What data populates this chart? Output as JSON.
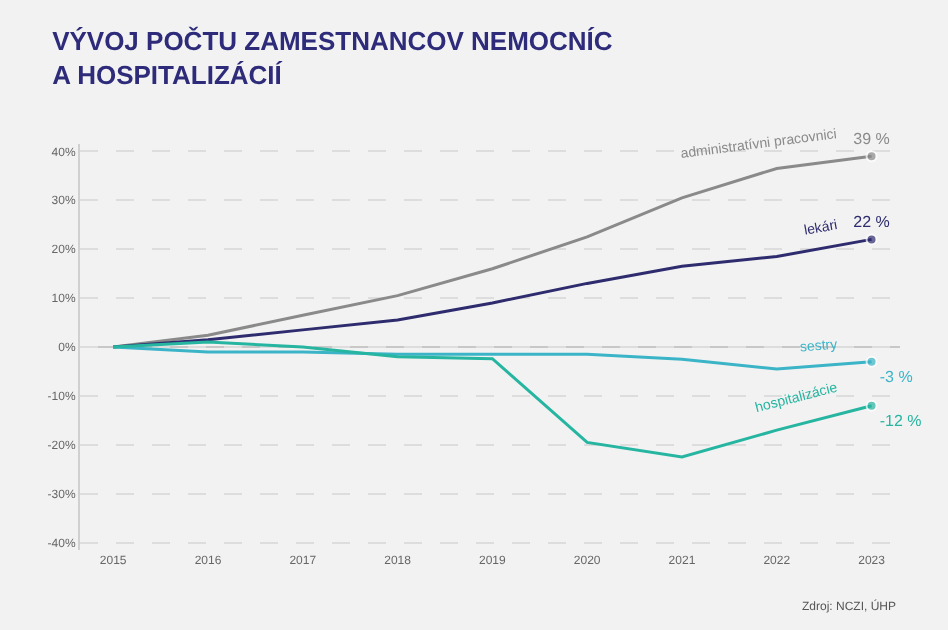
{
  "chart_data": {
    "type": "line",
    "title": "VÝVOJ POČTU ZAMESTNANCOV NEMOCNÍC A HOSPITALIZÁCIÍ",
    "x": [
      2015,
      2016,
      2017,
      2018,
      2019,
      2020,
      2021,
      2022,
      2023
    ],
    "series": [
      {
        "name": "administratívni pracovnici",
        "color": "#8a8a8a",
        "values": [
          0,
          2.4,
          6.5,
          10.5,
          16,
          22.5,
          30.5,
          36.5,
          39
        ],
        "value_labels": [
          null,
          null,
          null,
          null,
          null,
          null,
          null,
          null,
          "39 %"
        ]
      },
      {
        "name": "lekári",
        "color": "#2e2c6e",
        "values": [
          0,
          1.5,
          3.5,
          5.5,
          9,
          13,
          16.5,
          18.5,
          22
        ],
        "value_labels": [
          null,
          null,
          null,
          null,
          null,
          null,
          null,
          null,
          "22 %"
        ]
      },
      {
        "name": "sestry",
        "color": "#3bb4c8",
        "values": [
          0,
          -1,
          -1,
          -1.5,
          -1.5,
          -1.5,
          -2.5,
          -4.5,
          -3
        ],
        "value_labels": [
          null,
          null,
          null,
          null,
          null,
          null,
          null,
          null,
          "-3 %"
        ]
      },
      {
        "name": "hospitalizácie",
        "color": "#26b5a0",
        "values": [
          0,
          1,
          0,
          -2,
          -2.4,
          -19.5,
          -22.5,
          -17,
          -12
        ],
        "value_labels": [
          null,
          null,
          null,
          null,
          null,
          null,
          null,
          null,
          "-12 %"
        ]
      }
    ],
    "xlim": [
      2014.65,
      2023.3
    ],
    "xticks": [
      2015,
      2016,
      2017,
      2018,
      2019,
      2020,
      2021,
      2022,
      2023
    ],
    "ylim": [
      -41.5,
      41.5
    ],
    "yticks": [
      {
        "value": -40,
        "label": "-40%"
      },
      {
        "value": -30,
        "label": "-30%"
      },
      {
        "value": -20,
        "label": "-20%"
      },
      {
        "value": -10,
        "label": "-10%"
      },
      {
        "value": 0,
        "label": "0%"
      },
      {
        "value": 10,
        "label": "10%"
      },
      {
        "value": 20,
        "label": "20%"
      },
      {
        "value": 30,
        "label": "30%"
      },
      {
        "value": 40,
        "label": "40%"
      }
    ],
    "ref_lines": [
      {
        "axis": "y",
        "value": 0,
        "color": "#c8c8c8",
        "line_style": "solid"
      }
    ],
    "grid": "y",
    "legend": false,
    "line_style": "solid",
    "annotations": [
      "Zdroj: NCZI, ÚHP"
    ]
  }
}
